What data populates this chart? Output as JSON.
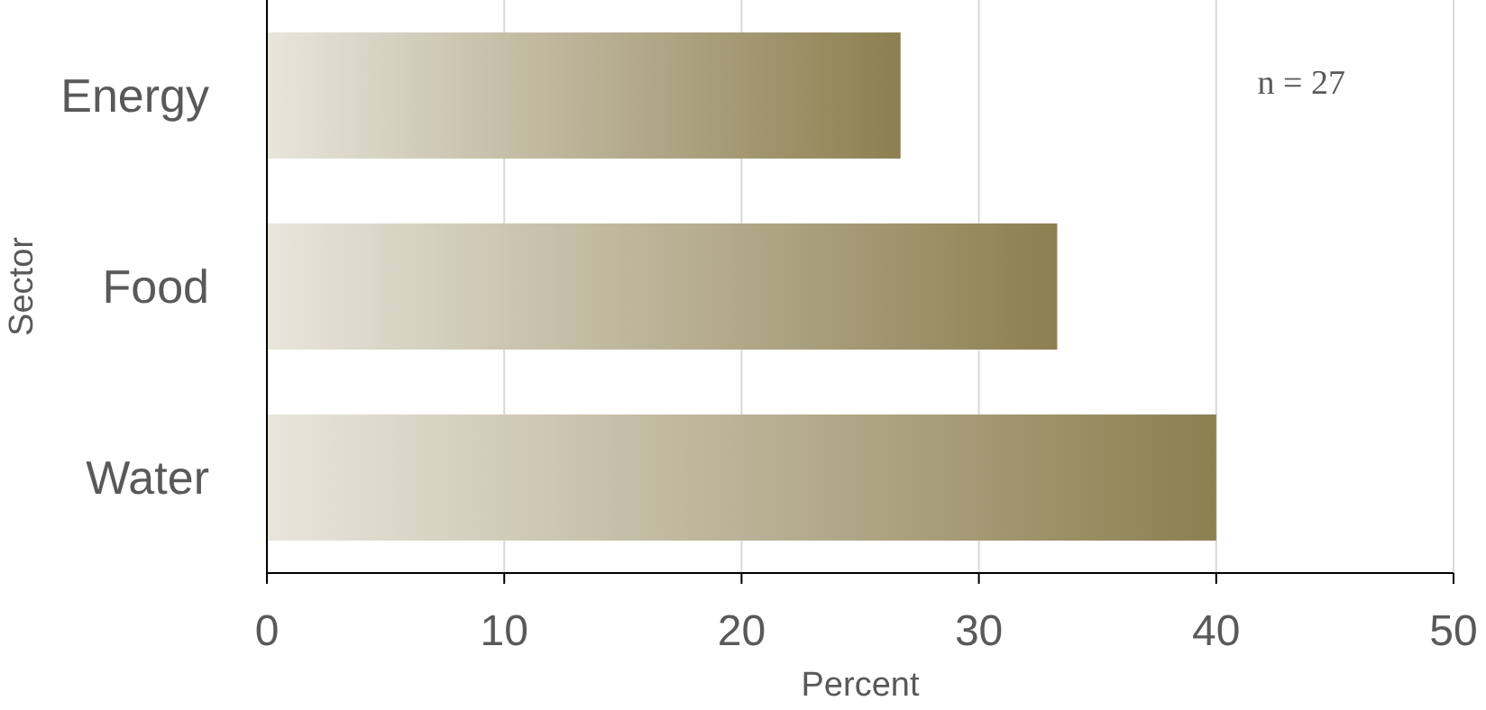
{
  "chart_data": {
    "type": "bar",
    "orientation": "horizontal",
    "categories": [
      "Energy",
      "Food",
      "Water"
    ],
    "values": [
      26.7,
      33.3,
      40
    ],
    "color": "#8c7f50",
    "xlabel": "Percent",
    "ylabel": "Sector",
    "xlim": [
      0,
      50
    ],
    "xticks": [
      0,
      10,
      20,
      30,
      40,
      50
    ],
    "grid": "x",
    "annotations": [
      "n = 27"
    ]
  }
}
